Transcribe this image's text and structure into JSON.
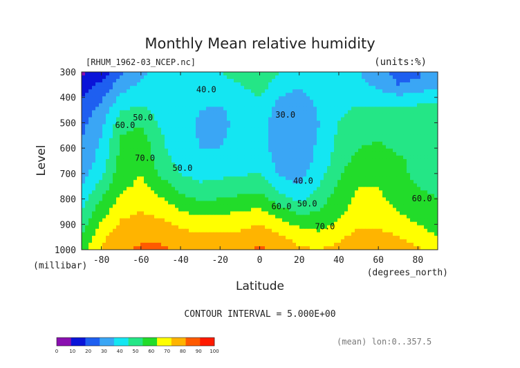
{
  "chart_data": {
    "type": "heatmap",
    "title": "Monthly Mean relative humidity",
    "source_label": "[RHUM_1962-03_NCEP.nc]",
    "units_label": "(units:%)",
    "xlabel": "Latitude",
    "ylabel": "Level",
    "x_unit_label": "(degrees_north)",
    "y_unit_label": "(millibar)",
    "contour_interval_label": "CONTOUR INTERVAL = 5.000E+00",
    "footnote": "(mean) lon:0..357.5",
    "xlim": [
      -90,
      90
    ],
    "ylim": [
      1000,
      300
    ],
    "x_ticks": [
      -80,
      -60,
      -40,
      -20,
      0,
      20,
      40,
      60,
      80
    ],
    "x_tick_labels": [
      "-80",
      "-60",
      "-40",
      "-20",
      "0",
      "20",
      "40",
      "60",
      "80"
    ],
    "y_ticks": [
      1000,
      900,
      800,
      700,
      600,
      500,
      400,
      300
    ],
    "y_tick_labels": [
      "1000",
      "900",
      "800",
      "700",
      "600",
      "500",
      "400",
      "300"
    ],
    "colorbar": {
      "boundaries": [
        0,
        10,
        20,
        30,
        40,
        50,
        60,
        70,
        80,
        90,
        100
      ],
      "labels": [
        "0",
        "10",
        "20",
        "30",
        "40",
        "50",
        "60",
        "70",
        "80",
        "90",
        "100"
      ],
      "colors": [
        "#8a0fb0",
        "#0a14d8",
        "#1e5ff0",
        "#3aa6f5",
        "#14e6f2",
        "#24e686",
        "#22dc2a",
        "#ffff00",
        "#ffb400",
        "#ff5a00",
        "#ff1a00"
      ]
    },
    "contour_labels": [
      {
        "text": "40.0",
        "lat": -27,
        "level": 380
      },
      {
        "text": "30.0",
        "lat": 13,
        "level": 480
      },
      {
        "text": "50.0",
        "lat": -59,
        "level": 490
      },
      {
        "text": "60.0",
        "lat": -68,
        "level": 520
      },
      {
        "text": "70.0",
        "lat": -58,
        "level": 650
      },
      {
        "text": "50.0",
        "lat": -39,
        "level": 690
      },
      {
        "text": "40.0",
        "lat": 22,
        "level": 740
      },
      {
        "text": "60.0",
        "lat": 11,
        "level": 840
      },
      {
        "text": "50.0",
        "lat": 24,
        "level": 830
      },
      {
        "text": "70.0",
        "lat": 33,
        "level": 920
      },
      {
        "text": "60.0",
        "lat": 82,
        "level": 810
      }
    ],
    "rh_field": {
      "lat": [
        -90,
        -80,
        -70,
        -60,
        -50,
        -40,
        -30,
        -20,
        -10,
        0,
        10,
        20,
        30,
        40,
        50,
        60,
        70,
        80,
        90
      ],
      "level": [
        1000,
        950,
        900,
        850,
        800,
        750,
        700,
        650,
        600,
        550,
        500,
        450,
        400,
        350,
        300
      ],
      "values": [
        [
          65,
          80,
          88,
          92,
          92,
          88,
          85,
          85,
          88,
          92,
          88,
          82,
          80,
          83,
          90,
          90,
          85,
          82,
          75
        ],
        [
          60,
          78,
          86,
          88,
          88,
          85,
          82,
          82,
          83,
          86,
          82,
          76,
          74,
          78,
          84,
          84,
          80,
          76,
          70
        ],
        [
          55,
          72,
          82,
          85,
          83,
          78,
          75,
          76,
          77,
          80,
          74,
          68,
          66,
          72,
          78,
          78,
          74,
          70,
          65
        ],
        [
          50,
          66,
          76,
          80,
          77,
          71,
          67,
          68,
          70,
          72,
          64,
          58,
          60,
          68,
          74,
          74,
          70,
          66,
          62
        ],
        [
          45,
          60,
          72,
          76,
          71,
          63,
          59,
          60,
          62,
          64,
          55,
          47,
          55,
          65,
          72,
          72,
          66,
          62,
          60
        ],
        [
          40,
          54,
          68,
          72,
          65,
          56,
          52,
          54,
          55,
          56,
          46,
          40,
          50,
          62,
          70,
          70,
          64,
          60,
          58
        ],
        [
          36,
          48,
          66,
          70,
          58,
          50,
          46,
          47,
          49,
          50,
          39,
          36,
          46,
          58,
          68,
          70,
          62,
          58,
          56
        ],
        [
          33,
          44,
          64,
          68,
          55,
          47,
          42,
          42,
          45,
          47,
          36,
          34,
          43,
          55,
          64,
          68,
          62,
          58,
          56
        ],
        [
          31,
          42,
          62,
          68,
          52,
          45,
          40,
          40,
          43,
          46,
          34,
          33,
          42,
          53,
          60,
          62,
          58,
          56,
          55
        ],
        [
          29,
          40,
          60,
          64,
          51,
          44,
          39,
          39,
          42,
          46,
          33,
          32,
          41,
          52,
          58,
          58,
          56,
          55,
          55
        ],
        [
          27,
          37,
          56,
          58,
          48,
          43,
          39,
          38,
          42,
          46,
          33,
          31,
          40,
          50,
          55,
          55,
          54,
          55,
          55
        ],
        [
          24,
          34,
          50,
          52,
          47,
          43,
          40,
          39,
          43,
          47,
          35,
          32,
          41,
          48,
          52,
          52,
          53,
          54,
          54
        ],
        [
          20,
          28,
          42,
          47,
          48,
          45,
          42,
          42,
          46,
          50,
          40,
          36,
          44,
          47,
          47,
          45,
          42,
          44,
          48
        ],
        [
          15,
          22,
          35,
          42,
          46,
          47,
          46,
          46,
          50,
          54,
          46,
          42,
          48,
          46,
          43,
          38,
          30,
          32,
          38
        ],
        [
          8,
          14,
          28,
          38,
          44,
          47,
          48,
          50,
          54,
          56,
          50,
          46,
          50,
          45,
          40,
          34,
          26,
          28,
          35
        ]
      ]
    }
  }
}
